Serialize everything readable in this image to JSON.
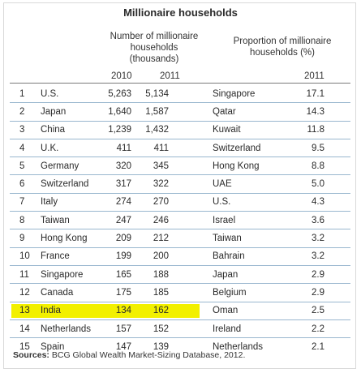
{
  "title": "Millionaire households",
  "left_header": {
    "line1": "Number of millionaire",
    "line2": "households",
    "line3": "(thousands)"
  },
  "right_header": {
    "line1": "Proportion of millionaire",
    "line2": "households (%)"
  },
  "col_2010": "2010",
  "col_2011_left": "2011",
  "col_2011_right": "2011",
  "highlight_color": "#f2f000",
  "rows": [
    {
      "rank": "1",
      "country": "U.S.",
      "v2010": "5,263",
      "v2011": "5,134",
      "rcountry": "Singapore",
      "rprop": "17.1"
    },
    {
      "rank": "2",
      "country": "Japan",
      "v2010": "1,640",
      "v2011": "1,587",
      "rcountry": "Qatar",
      "rprop": "14.3"
    },
    {
      "rank": "3",
      "country": "China",
      "v2010": "1,239",
      "v2011": "1,432",
      "rcountry": "Kuwait",
      "rprop": "11.8"
    },
    {
      "rank": "4",
      "country": "U.K.",
      "v2010": "411",
      "v2011": "411",
      "rcountry": "Switzerland",
      "rprop": "9.5"
    },
    {
      "rank": "5",
      "country": "Germany",
      "v2010": "320",
      "v2011": "345",
      "rcountry": "Hong Kong",
      "rprop": "8.8"
    },
    {
      "rank": "6",
      "country": "Switzerland",
      "v2010": "317",
      "v2011": "322",
      "rcountry": "UAE",
      "rprop": "5.0"
    },
    {
      "rank": "7",
      "country": "Italy",
      "v2010": "274",
      "v2011": "270",
      "rcountry": "U.S.",
      "rprop": "4.3"
    },
    {
      "rank": "8",
      "country": "Taiwan",
      "v2010": "247",
      "v2011": "246",
      "rcountry": "Israel",
      "rprop": "3.6"
    },
    {
      "rank": "9",
      "country": "Hong Kong",
      "v2010": "209",
      "v2011": "212",
      "rcountry": "Taiwan",
      "rprop": "3.2"
    },
    {
      "rank": "10",
      "country": "France",
      "v2010": "199",
      "v2011": "200",
      "rcountry": "Bahrain",
      "rprop": "3.2"
    },
    {
      "rank": "11",
      "country": "Singapore",
      "v2010": "165",
      "v2011": "188",
      "rcountry": "Japan",
      "rprop": "2.9"
    },
    {
      "rank": "12",
      "country": "Canada",
      "v2010": "175",
      "v2011": "185",
      "rcountry": "Belgium",
      "rprop": "2.9"
    },
    {
      "rank": "13",
      "country": "India",
      "v2010": "134",
      "v2011": "162",
      "rcountry": "Oman",
      "rprop": "2.5",
      "highlight": true
    },
    {
      "rank": "14",
      "country": "Netherlands",
      "v2010": "157",
      "v2011": "152",
      "rcountry": "Ireland",
      "rprop": "2.2"
    },
    {
      "rank": "15",
      "country": "Spain",
      "v2010": "147",
      "v2011": "139",
      "rcountry": "Netherlands",
      "rprop": "2.1"
    }
  ],
  "source": {
    "label": "Sources:",
    "text": " BCG Global Wealth Market-Sizing Database, 2012."
  }
}
